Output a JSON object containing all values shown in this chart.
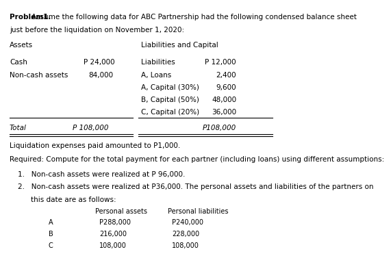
{
  "title_bold": "Problem1.",
  "title_normal": " Assume the following data for ABC Partnership had the following condensed balance sheet\njust before the liquidation on November 1, 2020:",
  "assets_header": "Assets",
  "liabilities_header": "Liabilities and Capital",
  "assets": [
    {
      "label": "Cash",
      "value": "P 24,000"
    },
    {
      "label": "Non-cash assets",
      "value": "84,000"
    }
  ],
  "liabilities": [
    {
      "label": "Liabilities",
      "value": "P 12,000"
    },
    {
      "label": "A, Loans",
      "value": "2,400"
    },
    {
      "label": "A, Capital (30%)",
      "value": "9,600"
    },
    {
      "label": "B, Capital (50%)",
      "value": "48,000"
    },
    {
      "label": "C, Capital (20%)",
      "value": "36,000"
    }
  ],
  "total_left": "Total",
  "total_left_value": "P 108,000",
  "total_right_value": "P108,000",
  "liquidation_text": "Liquidation expenses paid amounted to P1,000.",
  "required_text": "Required: Compute for the total payment for each partner (including loans) using different assumptions:",
  "item1": "Non-cash assets were realized at P 96,000.",
  "item2a": "Non-cash assets were realized at P36,000. The personal assets and liabilities of the partners on",
  "item2b": "this date are as follows:",
  "table_header_col1": "Personal assets",
  "table_header_col2": "Personal liabilities",
  "table_rows": [
    {
      "partner": "A",
      "assets": "P288,000",
      "liabilities": "P240,000"
    },
    {
      "partner": "B",
      "assets": "216,000",
      "liabilities": "228,000"
    },
    {
      "partner": "C",
      "assets": "108,000",
      "liabilities": "108,000"
    }
  ],
  "bg_color": "#ffffff",
  "text_color": "#000000",
  "font_size": 7.5,
  "font_size_small": 7.0
}
